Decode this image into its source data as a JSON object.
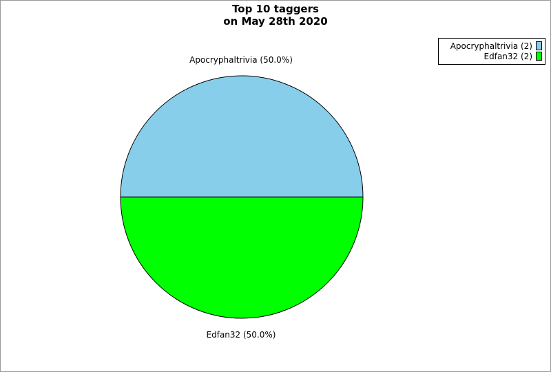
{
  "chart_data": {
    "type": "pie",
    "title_lines": [
      "Top 10 taggers",
      "on May 28th 2020"
    ],
    "slices": [
      {
        "name": "Apocryphaltrivia",
        "value": 2,
        "percent": "50.0%",
        "color": "#87ceeb",
        "label": "Apocryphaltrivia (50.0%)",
        "legend": "Apocryphaltrivia (2)"
      },
      {
        "name": "Edfan32",
        "value": 2,
        "percent": "50.0%",
        "color": "#00ff00",
        "label": "Edfan32 (50.0%)",
        "legend": "Edfan32 (2)"
      }
    ],
    "legend_position": "top-right"
  }
}
